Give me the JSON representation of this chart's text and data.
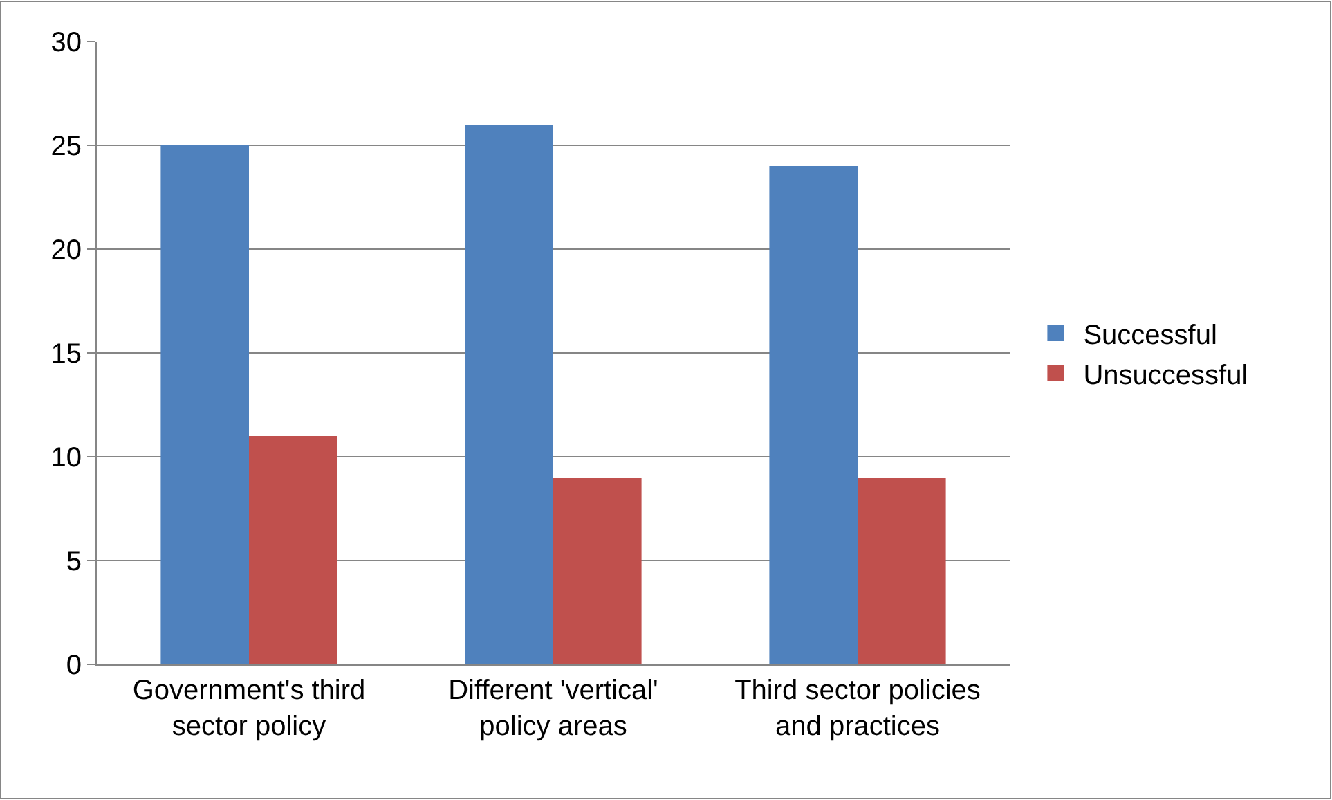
{
  "chart_data": {
    "type": "bar",
    "categories": [
      "Government's third sector policy",
      "Different 'vertical' policy areas",
      "Third sector policies and practices"
    ],
    "series": [
      {
        "name": "Successful",
        "color": "#4f81bd",
        "values": [
          25,
          26,
          24
        ]
      },
      {
        "name": "Unsuccessful",
        "color": "#c0504d",
        "values": [
          11,
          9,
          9
        ]
      }
    ],
    "ylim": [
      0,
      30
    ],
    "yticks": [
      0,
      5,
      10,
      15,
      20,
      25,
      30
    ],
    "grid": "y",
    "legend": "right"
  }
}
